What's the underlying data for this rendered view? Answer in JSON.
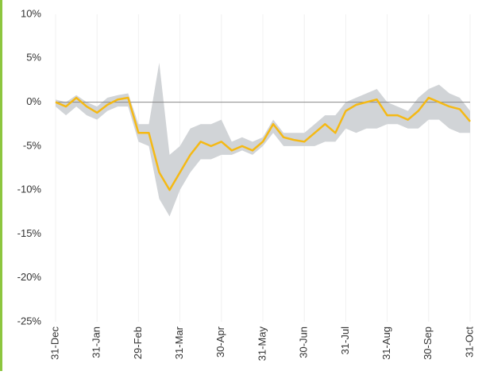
{
  "chart_data": {
    "type": "line",
    "x": [
      "31-Dec",
      "7-Jan",
      "15-Jan",
      "23-Jan",
      "31-Jan",
      "7-Feb",
      "15-Feb",
      "22-Feb",
      "29-Feb",
      "7-Mar",
      "15-Mar",
      "23-Mar",
      "31-Mar",
      "7-Apr",
      "15-Apr",
      "22-Apr",
      "30-Apr",
      "7-May",
      "15-May",
      "23-May",
      "31-May",
      "7-Jun",
      "15-Jun",
      "22-Jun",
      "30-Jun",
      "7-Jul",
      "15-Jul",
      "23-Jul",
      "31-Jul",
      "7-Aug",
      "15-Aug",
      "23-Aug",
      "31-Aug",
      "7-Sep",
      "15-Sep",
      "22-Sep",
      "30-Sep",
      "7-Oct",
      "15-Oct",
      "23-Oct",
      "31-Oct"
    ],
    "series": [
      {
        "color": "#f5b914",
        "values": [
          0,
          -0.5,
          0.5,
          -0.5,
          -1.2,
          -0.3,
          0.3,
          0.5,
          -3.5,
          -3.5,
          -8,
          -10,
          -8,
          -6,
          -4.5,
          -5,
          -4.5,
          -5.5,
          -5,
          -5.5,
          -4.5,
          -2.5,
          -4,
          -4.3,
          -4.5,
          -3.5,
          -2.5,
          -3.5,
          -1,
          -0.3,
          0,
          0.3,
          -1.5,
          -1.5,
          -2,
          -1,
          0.5,
          0,
          -0.5,
          -0.8,
          -2.2
        ]
      }
    ],
    "band": {
      "color": "#d1d4d7",
      "high": [
        0.3,
        0,
        0.8,
        0,
        -0.5,
        0.5,
        0.8,
        1,
        -2.5,
        -2.5,
        4.5,
        -6,
        -5,
        -3,
        -2.5,
        -2.5,
        -2,
        -4.5,
        -4,
        -4.5,
        -4,
        -2,
        -3.5,
        -3.5,
        -3.5,
        -2.5,
        -1.5,
        -1.5,
        0,
        0.5,
        1,
        1.5,
        0,
        -0.5,
        -1,
        0.5,
        1.5,
        2,
        1,
        0.5,
        -1
      ],
      "low": [
        -0.5,
        -1.5,
        -0.5,
        -1.5,
        -2,
        -1,
        -0.5,
        -0.5,
        -4.5,
        -5,
        -11,
        -13,
        -10,
        -8,
        -6.5,
        -6.5,
        -6,
        -6,
        -5.5,
        -6,
        -5,
        -3.5,
        -5,
        -5,
        -5,
        -5,
        -4.5,
        -4.5,
        -3,
        -3.5,
        -3,
        -3,
        -2.5,
        -2.5,
        -3,
        -3,
        -2,
        -2,
        -3,
        -3.5,
        -3.5
      ]
    },
    "xticks": [
      "31-Dec",
      "31-Jan",
      "29-Feb",
      "31-Mar",
      "30-Apr",
      "31-May",
      "30-Jun",
      "31-Jul",
      "31-Aug",
      "30-Sep",
      "31-Oct"
    ],
    "ylim": [
      -25,
      10
    ],
    "yticks": [
      {
        "value": 10,
        "label": "10%"
      },
      {
        "value": 5,
        "label": "5%"
      },
      {
        "value": 0,
        "label": "0%"
      },
      {
        "value": -5,
        "label": "-5%"
      },
      {
        "value": -10,
        "label": "-10%"
      },
      {
        "value": -15,
        "label": "-15%"
      },
      {
        "value": -20,
        "label": "-20%"
      },
      {
        "value": -25,
        "label": "-25%"
      }
    ],
    "zero_line": true
  }
}
